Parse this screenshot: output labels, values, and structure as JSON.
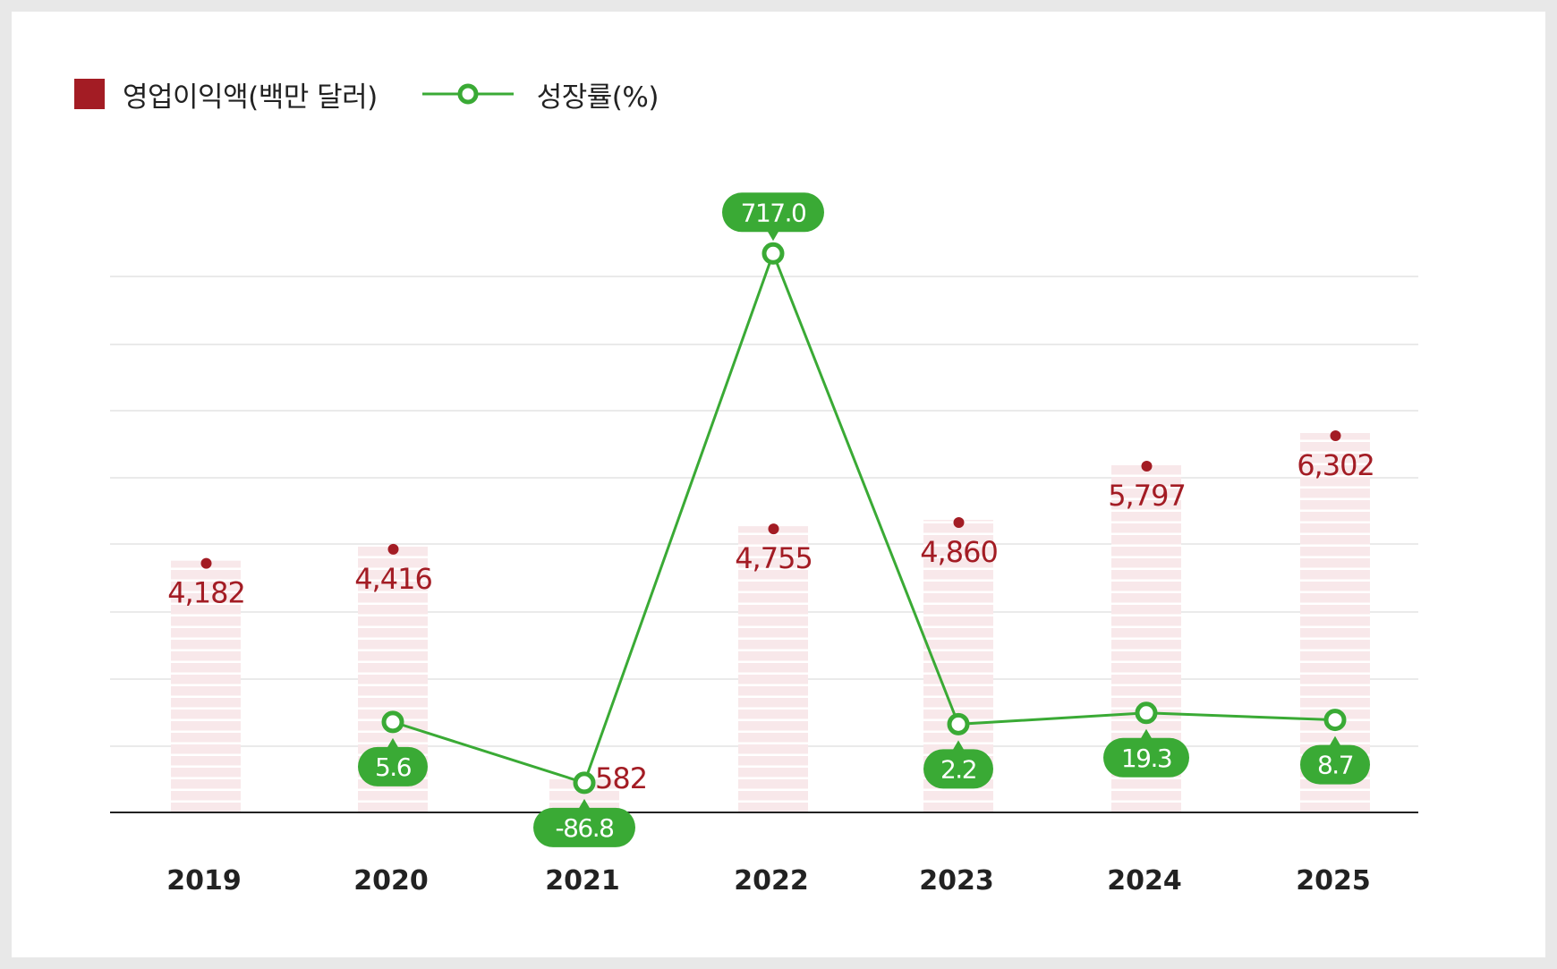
{
  "colors": {
    "bar": "#a31c24",
    "bar_fill": "#f8e8ea",
    "line": "#3aaa35",
    "axis": "#222222",
    "grid": "#e4e4e4"
  },
  "legend": {
    "bar_label": "영업이익액(백만 달러)",
    "line_label": "성장률(%)"
  },
  "chart_data": {
    "type": "bar",
    "categories": [
      "2019",
      "2020",
      "2021",
      "2022",
      "2023",
      "2024",
      "2025"
    ],
    "series": [
      {
        "name": "영업이익액(백만 달러)",
        "type": "bar",
        "values": [
          4182,
          4416,
          582,
          4755,
          4860,
          5797,
          6302
        ],
        "labels": [
          "4,182",
          "4,416",
          "582",
          "4,755",
          "4,860",
          "5,797",
          "6,302"
        ]
      },
      {
        "name": "성장률(%)",
        "type": "line",
        "values": [
          null,
          5.6,
          -86.8,
          717.0,
          2.2,
          19.3,
          8.7
        ],
        "labels": [
          "",
          "5.6",
          "-86.8",
          "717.0",
          "2.2",
          "19.3",
          "8.7"
        ]
      }
    ],
    "grid": true,
    "legend_position": "top-left"
  }
}
